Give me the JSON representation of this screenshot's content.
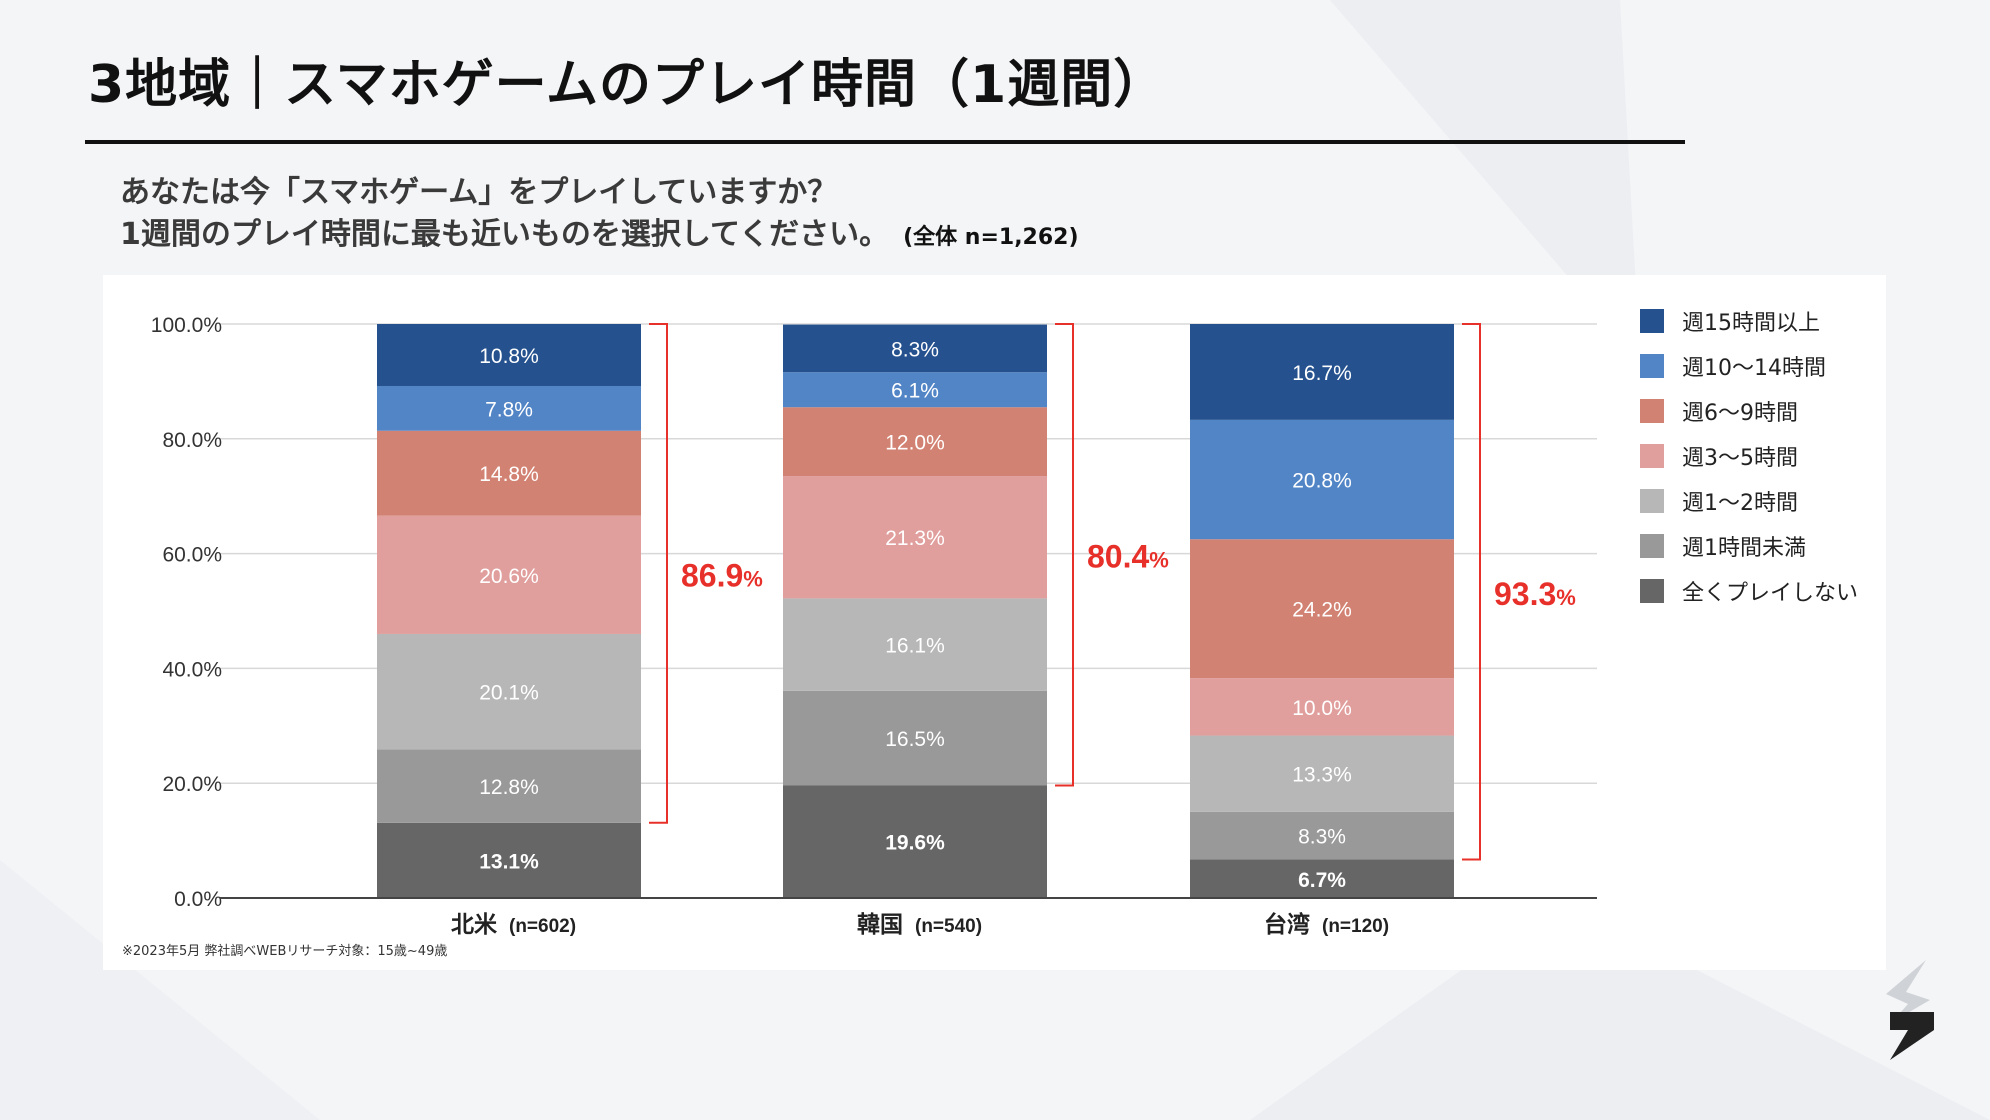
{
  "title": "3地域｜スマホゲームのプレイ時間（1週間）",
  "question": {
    "line1": "あなたは今「スマホゲーム」をプレイしていますか？",
    "line2": "1週間のプレイ時間に最も近いものを選択してください。",
    "note": "(全体 n=1,262)"
  },
  "footnote": "※2023年5月 弊社調べWEBリサーチ対象：15歳~49歳",
  "chart_data": {
    "type": "bar",
    "stacked": true,
    "categories": [
      "北米",
      "韓国",
      "台湾"
    ],
    "category_n": [
      "(n=602)",
      "(n=540)",
      "(n=120)"
    ],
    "ylim": [
      0,
      100
    ],
    "y_ticks": [
      "0.0%",
      "20.0%",
      "40.0%",
      "60.0%",
      "80.0%",
      "100.0%"
    ],
    "grid": true,
    "legend_position": "right",
    "series": [
      {
        "name": "全くプレイしない",
        "color": "#666666",
        "values": [
          13.1,
          19.6,
          6.7
        ],
        "labels": [
          "13.1%",
          "19.6%",
          "6.7%"
        ]
      },
      {
        "name": "週1時間未満",
        "color": "#999999",
        "values": [
          12.8,
          16.5,
          8.3
        ],
        "labels": [
          "12.8%",
          "16.5%",
          "8.3%"
        ]
      },
      {
        "name": "週1〜2時間",
        "color": "#b7b7b7",
        "values": [
          20.1,
          16.1,
          13.3
        ],
        "labels": [
          "20.1%",
          "16.1%",
          "13.3%"
        ]
      },
      {
        "name": "週3〜5時間",
        "color": "#e09e9c",
        "values": [
          20.6,
          21.3,
          10.0
        ],
        "labels": [
          "20.6%",
          "21.3%",
          "10.0%"
        ]
      },
      {
        "name": "週6〜9時間",
        "color": "#d28272",
        "values": [
          14.8,
          12.0,
          24.2
        ],
        "labels": [
          "14.8%",
          "12.0%",
          "24.2%"
        ]
      },
      {
        "name": "週10〜14時間",
        "color": "#5285c6",
        "values": [
          7.8,
          6.1,
          20.8
        ],
        "labels": [
          "7.8%",
          "6.1%",
          "20.8%"
        ]
      },
      {
        "name": "週15時間以上",
        "color": "#25528e",
        "values": [
          10.8,
          8.3,
          16.7
        ],
        "labels": [
          "10.8%",
          "8.3%",
          "16.7%"
        ]
      }
    ],
    "bracket_totals": {
      "values": [
        86.9,
        80.4,
        93.3
      ],
      "numbers": [
        "86.9",
        "80.4",
        "93.3"
      ],
      "unit": "%",
      "color": "#e8302a"
    }
  }
}
